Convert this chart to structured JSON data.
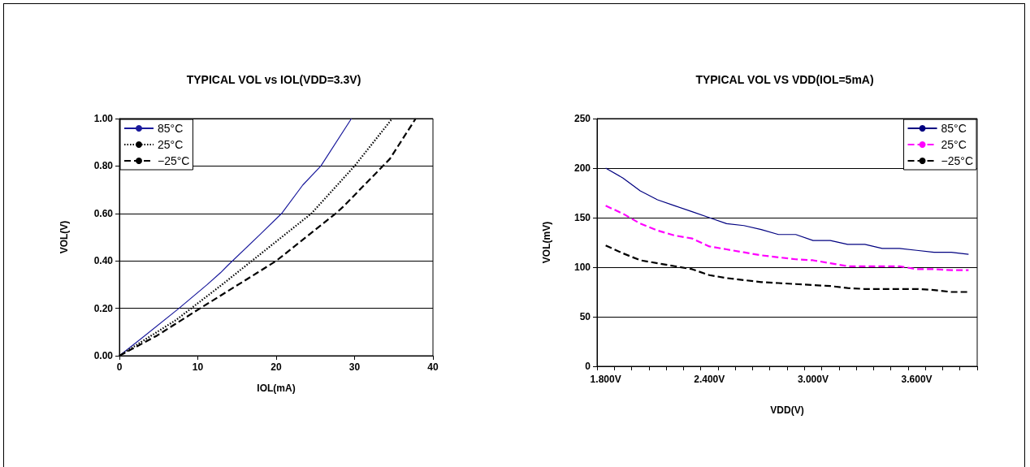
{
  "chart_data": [
    {
      "type": "line",
      "title": "TYPICAL VOL vs IOL(VDD=3.3V)",
      "xlabel": "IOL(mA)",
      "ylabel": "VOL(V)",
      "xlim": [
        0,
        40
      ],
      "xticks": [
        0,
        10,
        20,
        30,
        40
      ],
      "ylim": [
        0,
        1
      ],
      "yticks": [
        {
          "value": 0,
          "label": "0.00"
        },
        {
          "value": 0.2,
          "label": "0.20"
        },
        {
          "value": 0.4,
          "label": "0.40"
        },
        {
          "value": 0.6,
          "label": "0.60"
        },
        {
          "value": 0.8,
          "label": "0.80"
        },
        {
          "value": 1,
          "label": "1.00"
        }
      ],
      "grid": "y",
      "legend": "top left",
      "series": [
        {
          "name": "85°C",
          "color": "#1a1a9c",
          "line_style": "solid",
          "x": [
            0,
            2.7,
            7.6,
            11.2,
            12.9,
            13.8,
            17.9,
            20.7,
            23.4,
            25.7,
            29.6
          ],
          "values": [
            0,
            0.07,
            0.2,
            0.3,
            0.35,
            0.38,
            0.51,
            0.6,
            0.72,
            0.8,
            1.0
          ]
        },
        {
          "name": "25°C",
          "color": "#000000",
          "line_style": "dotted",
          "x": [
            0,
            7.2,
            13.1,
            16.9,
            24.5,
            30,
            34.8
          ],
          "values": [
            0,
            0.15,
            0.3,
            0.4,
            0.6,
            0.8,
            1.0
          ]
        },
        {
          "name": "−25°C",
          "color": "#000000",
          "line_style": "dashed",
          "x": [
            0,
            4.8,
            10.3,
            17.6,
            20,
            27.6,
            28.6,
            34.5,
            37.8
          ],
          "values": [
            0,
            0.085,
            0.2,
            0.35,
            0.4,
            0.6,
            0.63,
            0.83,
            1.0
          ]
        }
      ]
    },
    {
      "type": "line",
      "title": "TYPICAL VOL VS VDD(IOL=5mA)",
      "xlabel": "VDD(V)",
      "ylabel": "VOL(mV)",
      "categories": [
        "1.800V",
        null,
        null,
        null,
        null,
        null,
        "2.400V",
        null,
        null,
        null,
        null,
        null,
        "3.000V",
        null,
        null,
        null,
        null,
        null,
        "3.600V",
        null,
        null,
        null
      ],
      "ylim": [
        0,
        250
      ],
      "yticks": [
        0,
        50,
        100,
        150,
        200,
        250
      ],
      "grid": "y",
      "legend": "top right",
      "series": [
        {
          "name": "85°C",
          "color": "#000080",
          "line_style": "solid",
          "values": [
            200,
            190,
            177,
            168,
            162,
            156,
            150,
            144,
            142,
            138,
            133,
            133,
            127,
            127,
            123,
            123,
            119,
            119,
            117,
            115,
            115,
            113
          ]
        },
        {
          "name": "25°C",
          "color": "#ff00ff",
          "line_style": "dashed",
          "values": [
            162,
            154,
            144,
            137,
            132,
            129,
            121,
            118,
            115,
            112,
            110,
            108,
            107,
            104,
            101,
            101,
            101,
            101,
            98,
            98,
            97,
            97
          ]
        },
        {
          "name": "−25°C",
          "color": "#000000",
          "line_style": "dashed",
          "values": [
            122,
            114,
            107,
            104,
            101,
            98,
            92,
            89,
            87,
            85,
            84,
            83,
            82,
            81,
            79,
            78,
            78,
            78,
            78,
            77,
            75,
            75
          ]
        }
      ]
    }
  ]
}
